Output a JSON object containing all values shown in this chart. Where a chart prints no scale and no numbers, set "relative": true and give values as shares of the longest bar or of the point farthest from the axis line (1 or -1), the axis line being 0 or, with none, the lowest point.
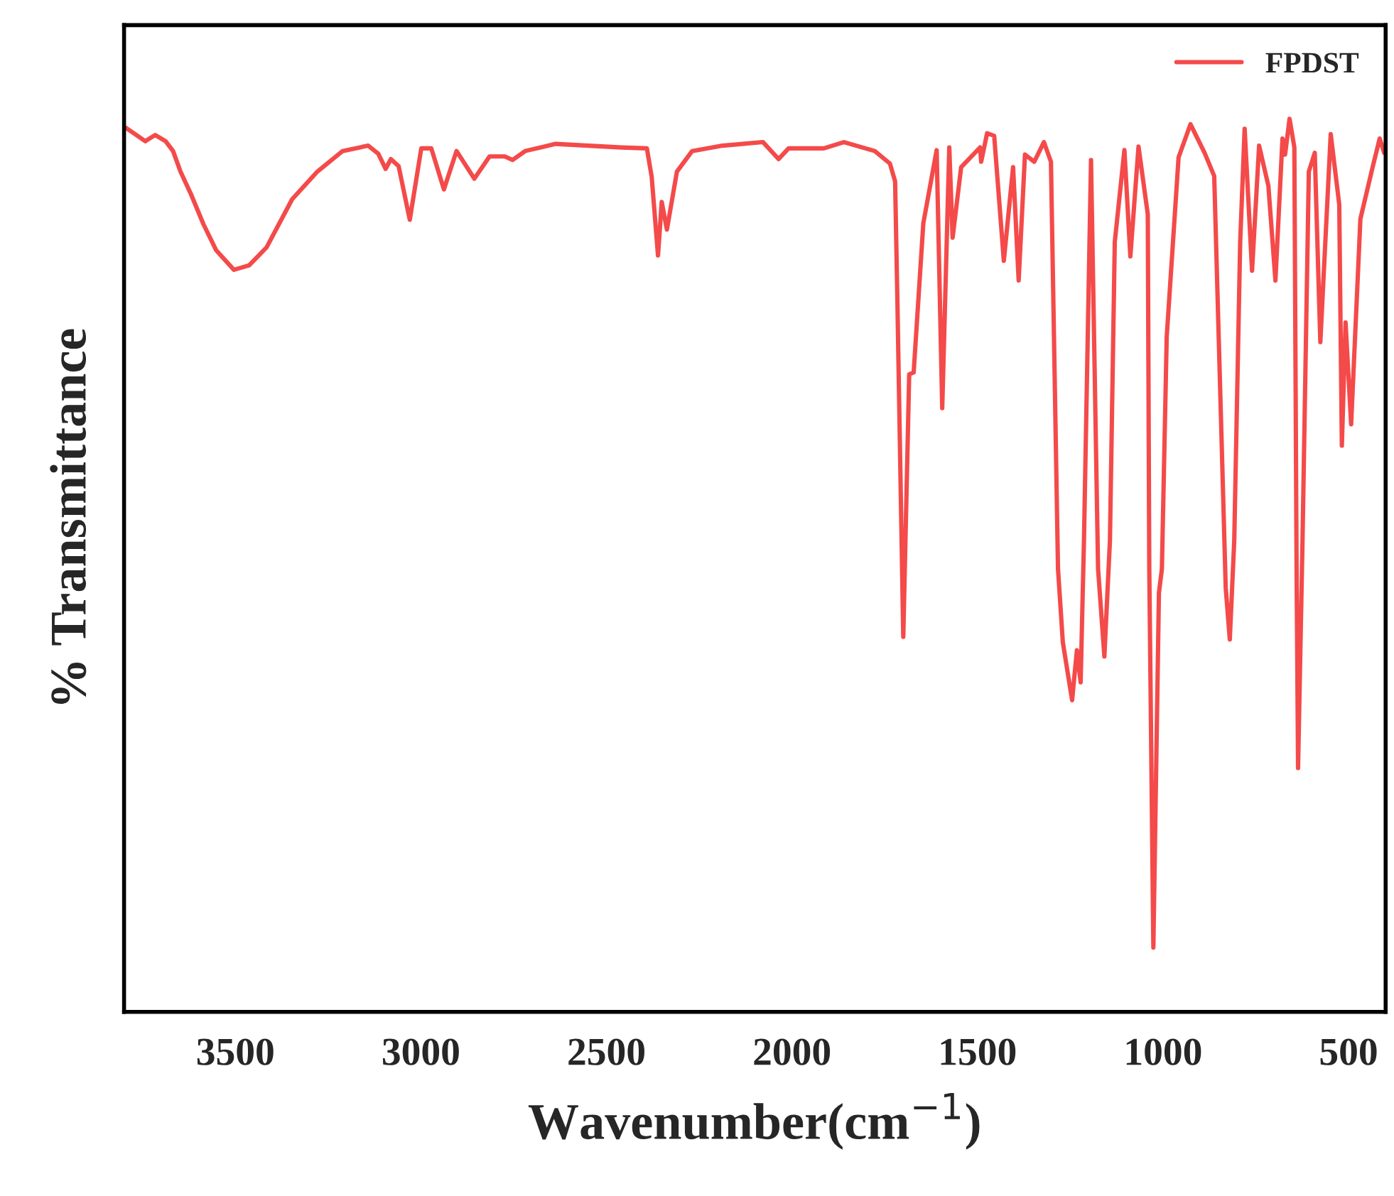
{
  "chart_data": {
    "type": "line",
    "xlabel": "Wavenumber(cm$^{−1}$)",
    "ylabel": "% Transmittance",
    "relative": true,
    "xlim": [
      3800,
      400
    ],
    "xticks": [
      3500,
      3000,
      2500,
      2000,
      1500,
      1000,
      500
    ],
    "tick_labels": "x",
    "grid": false,
    "legend": "top right",
    "line_style": "solid",
    "marker": "none",
    "series": [
      {
        "name": "FPDST",
        "color": "#f44a4a",
        "x": [
          3795,
          3743,
          3716,
          3688,
          3668,
          3648,
          3620,
          3586,
          3552,
          3504,
          3463,
          3416,
          3347,
          3279,
          3211,
          3142,
          3115,
          3095,
          3081,
          3060,
          3030,
          2999,
          2972,
          2938,
          2904,
          2856,
          2815,
          2774,
          2753,
          2719,
          2637,
          2460,
          2391,
          2378,
          2361,
          2351,
          2337,
          2310,
          2269,
          2187,
          2078,
          2036,
          2009,
          1914,
          1860,
          1777,
          1736,
          1722,
          1716,
          1700,
          1684,
          1672,
          1646,
          1610,
          1595,
          1576,
          1567,
          1544,
          1493,
          1490,
          1474,
          1455,
          1429,
          1404,
          1389,
          1372,
          1347,
          1321,
          1302,
          1283,
          1270,
          1245,
          1232,
          1222,
          1213,
          1194,
          1175,
          1158,
          1143,
          1130,
          1104,
          1088,
          1066,
          1041,
          1037,
          1026,
          1011,
          1003,
          990,
          958,
          926,
          888,
          862,
          831,
          820,
          808,
          792,
          780,
          760,
          741,
          716,
          697,
          678,
          671,
          659,
          646,
          640,
          636,
          624,
          607,
          591,
          576,
          548,
          525,
          518,
          508,
          493,
          468,
          435,
          416,
          404
        ],
        "values": [
          0.99,
          0.975,
          0.982,
          0.975,
          0.964,
          0.941,
          0.916,
          0.882,
          0.853,
          0.831,
          0.836,
          0.856,
          0.91,
          0.941,
          0.964,
          0.97,
          0.961,
          0.944,
          0.955,
          0.947,
          0.887,
          0.967,
          0.967,
          0.921,
          0.964,
          0.933,
          0.958,
          0.958,
          0.954,
          0.964,
          0.972,
          0.968,
          0.967,
          0.935,
          0.847,
          0.907,
          0.876,
          0.941,
          0.964,
          0.97,
          0.974,
          0.955,
          0.967,
          0.967,
          0.974,
          0.964,
          0.95,
          0.93,
          0.8,
          0.42,
          0.714,
          0.716,
          0.883,
          0.965,
          0.676,
          0.968,
          0.867,
          0.946,
          0.968,
          0.952,
          0.984,
          0.981,
          0.841,
          0.946,
          0.819,
          0.96,
          0.952,
          0.974,
          0.952,
          0.496,
          0.414,
          0.349,
          0.405,
          0.369,
          0.528,
          0.954,
          0.496,
          0.398,
          0.528,
          0.862,
          0.965,
          0.846,
          0.969,
          0.893,
          0.496,
          0.072,
          0.469,
          0.496,
          0.756,
          0.957,
          0.994,
          0.962,
          0.936,
          0.475,
          0.417,
          0.528,
          0.862,
          0.989,
          0.83,
          0.97,
          0.925,
          0.819,
          0.978,
          0.96,
          1.0,
          0.968,
          0.496,
          0.273,
          0.528,
          0.941,
          0.962,
          0.75,
          0.983,
          0.904,
          0.634,
          0.772,
          0.658,
          0.888,
          0.946,
          0.978,
          0.962
        ]
      }
    ]
  }
}
